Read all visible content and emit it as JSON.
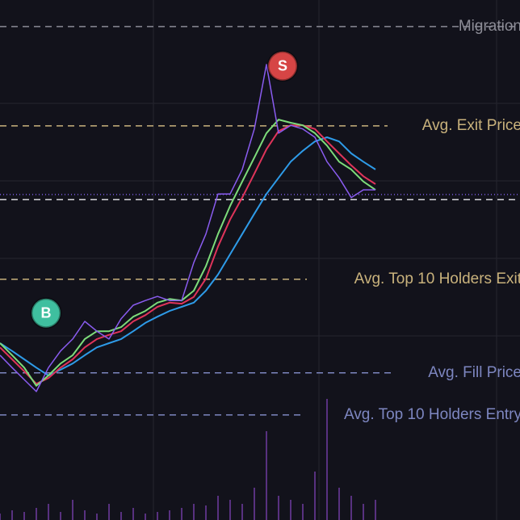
{
  "chart_data": {
    "type": "line",
    "xlim": [
      0,
      644
    ],
    "ylim": [
      0,
      100
    ],
    "volume_lim": [
      0,
      150
    ],
    "x": [
      0,
      15,
      30,
      45,
      60,
      75,
      90,
      105,
      120,
      135,
      150,
      165,
      180,
      195,
      210,
      225,
      240,
      255,
      270,
      285,
      300,
      315,
      330,
      345,
      360,
      375,
      390,
      405,
      420,
      435,
      450,
      465
    ],
    "series": [
      {
        "color": "#8a5cf0",
        "values": [
          31.7,
          29.3,
          27.0,
          24.7,
          29.3,
          32.5,
          34.8,
          38.2,
          36.3,
          34.8,
          38.7,
          41.3,
          42.2,
          43.0,
          42.2,
          42.2,
          49.5,
          55.0,
          62.7,
          62.7,
          67.4,
          75.2,
          87.6,
          74.4,
          75.9,
          75.2,
          73.6,
          68.9,
          65.8,
          62.0,
          63.5,
          63.5
        ]
      },
      {
        "color": "#2e9be8",
        "values": [
          34.0,
          32.5,
          30.9,
          29.3,
          27.8,
          28.9,
          30.1,
          31.7,
          33.2,
          34.0,
          34.8,
          36.3,
          37.9,
          39.1,
          40.2,
          41.0,
          41.8,
          44.1,
          47.2,
          51.1,
          55.0,
          58.9,
          62.7,
          65.8,
          68.9,
          71.0,
          72.8,
          73.6,
          72.8,
          70.5,
          68.9,
          67.4
        ]
      },
      {
        "color": "#e0345a",
        "values": [
          33.2,
          30.9,
          28.6,
          26.2,
          27.3,
          29.3,
          30.9,
          33.2,
          34.8,
          35.6,
          36.3,
          38.2,
          39.4,
          41.0,
          41.8,
          41.6,
          42.9,
          46.4,
          52.6,
          57.8,
          62.0,
          66.6,
          71.3,
          74.8,
          75.9,
          75.9,
          75.2,
          72.8,
          70.5,
          68.2,
          66.1,
          64.6
        ]
      },
      {
        "color": "#7ddc7a",
        "values": [
          34.0,
          31.7,
          29.3,
          25.8,
          27.8,
          30.1,
          31.7,
          34.8,
          36.3,
          36.3,
          37.1,
          39.1,
          40.2,
          41.8,
          42.5,
          42.2,
          44.1,
          48.8,
          55.0,
          60.4,
          65.1,
          69.7,
          74.4,
          77.0,
          76.4,
          75.9,
          74.4,
          72.0,
          68.9,
          67.4,
          65.1,
          63.5
        ]
      }
    ],
    "volume": {
      "color": "#6a3a9a",
      "values": [
        8,
        12,
        10,
        15,
        20,
        10,
        25,
        12,
        8,
        20,
        10,
        15,
        8,
        10,
        12,
        15,
        20,
        18,
        30,
        25,
        20,
        40,
        110,
        30,
        25,
        20,
        60,
        150,
        40,
        30,
        20,
        25
      ]
    },
    "levels": [
      {
        "label": "Migration",
        "value": 94.9,
        "color": "#8c8c96",
        "end": 644
      },
      {
        "label": "Avg. Exit Price",
        "value": 75.8,
        "color": "#c9b27c",
        "end": 480
      },
      {
        "value": 62.6,
        "color": "#7a5ce0",
        "end": 644
      },
      {
        "value": 61.6,
        "color": "#d8d8de",
        "end": 644
      },
      {
        "label": "Avg. Top 10 Holders Exit",
        "value": 46.3,
        "color": "#c9b27c",
        "end": 380
      },
      {
        "label": "Avg. Fill Price",
        "value": 28.3,
        "color": "#7d86c0",
        "end": 490
      },
      {
        "label": "Avg. Top 10 Holders Entry",
        "value": 20.2,
        "color": "#7d86c0",
        "end": 376
      }
    ],
    "markers": [
      {
        "label": "B",
        "x": 57,
        "value": 39.8,
        "color": "#3fbf9f"
      },
      {
        "label": "S",
        "x": 350,
        "value": 87.3,
        "color": "#d64545"
      }
    ]
  }
}
